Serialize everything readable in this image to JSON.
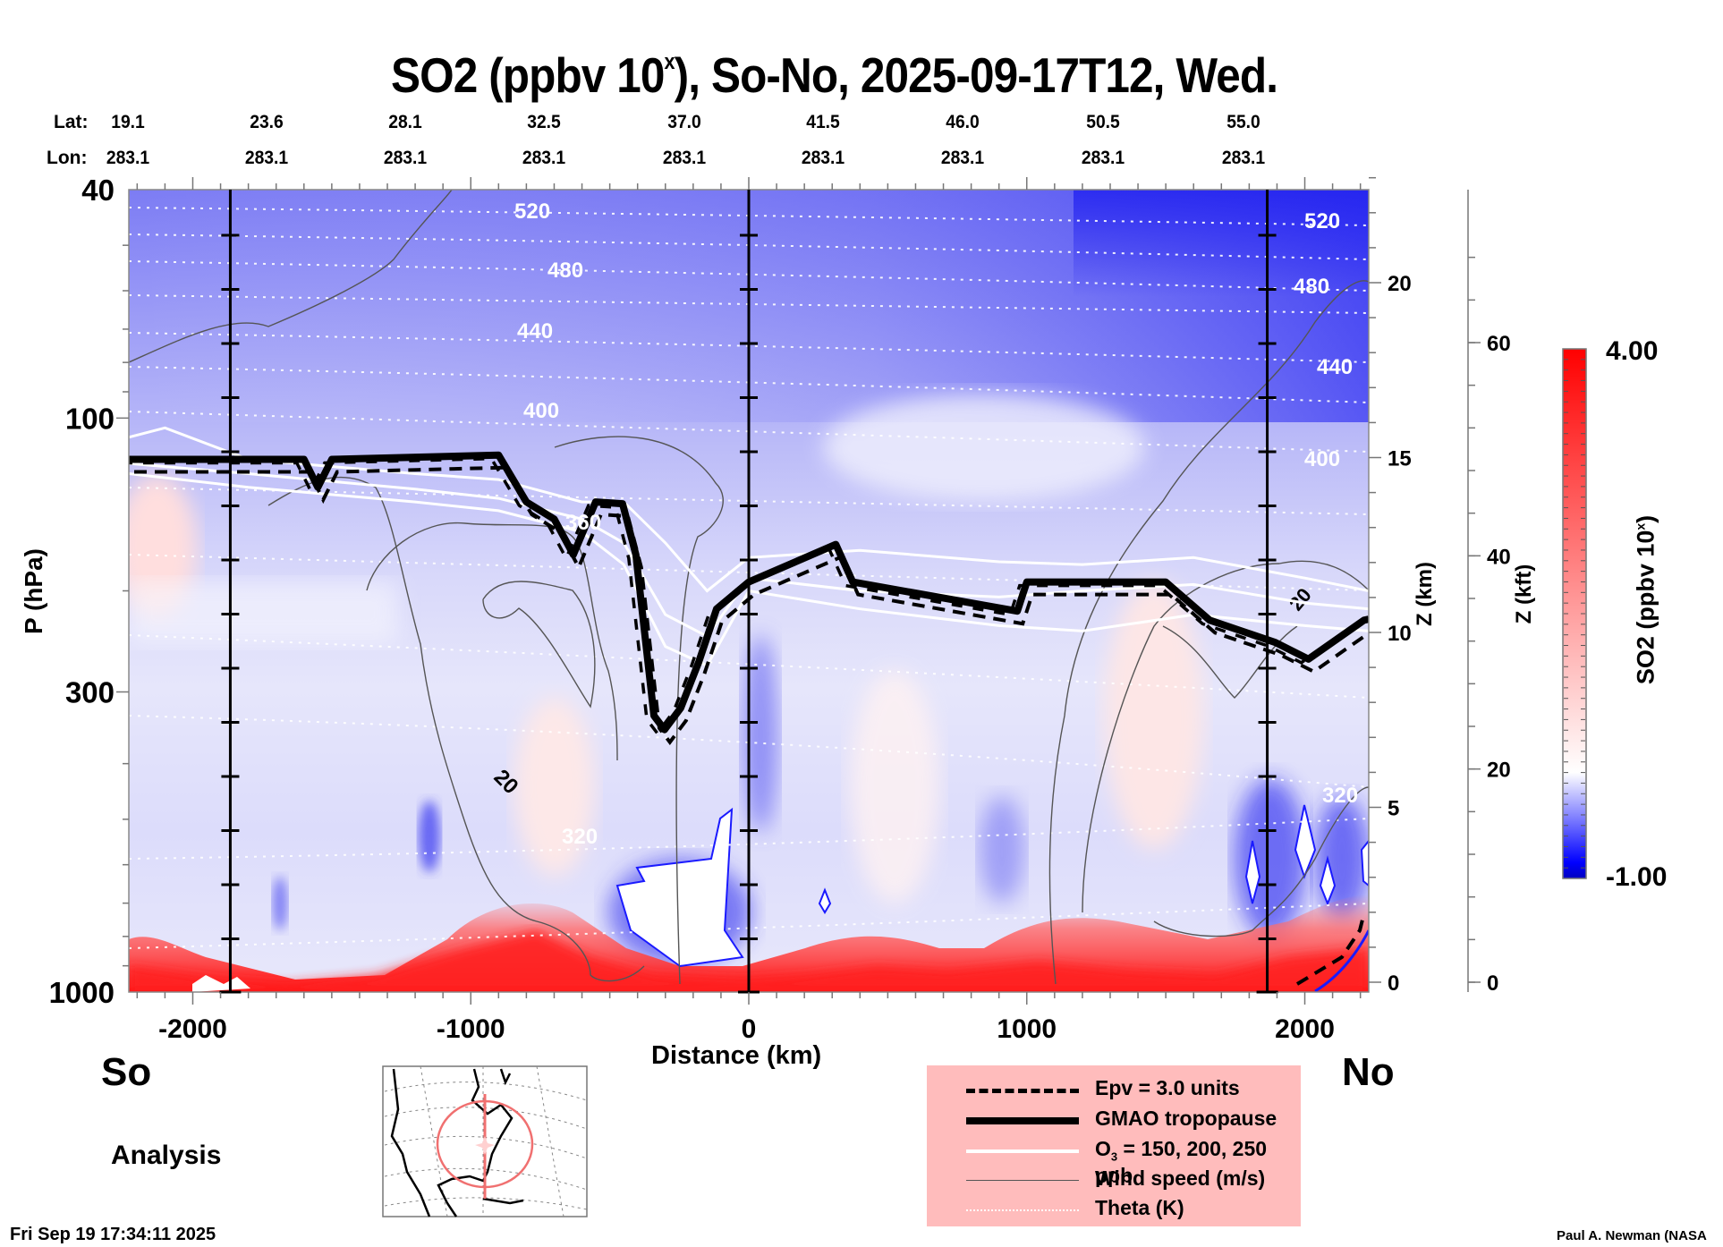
{
  "title": {
    "prefix": "SO2 (ppbv 10",
    "superscript": "x",
    "suffix": "), So-No, 2025-09-17T12, Wed."
  },
  "header": {
    "lat_label": "Lat:",
    "lon_label": "Lon:",
    "lat": [
      "19.1",
      "23.6",
      "28.1",
      "32.5",
      "37.0",
      "41.5",
      "46.0",
      "50.5",
      "55.0"
    ],
    "lon": [
      "283.1",
      "283.1",
      "283.1",
      "283.1",
      "283.1",
      "283.1",
      "283.1",
      "283.1",
      "283.1"
    ]
  },
  "labels": {
    "south": "So",
    "north": "No",
    "analysis": "Analysis",
    "timestamp": "Fri Sep 19 17:34:11 2025",
    "credit": "Paul A. Newman (NASA"
  },
  "legend": {
    "items": [
      {
        "label": "Epv = 3.0 units",
        "style": "dashed-black"
      },
      {
        "label": "GMAO tropopause",
        "style": "thick-black"
      },
      {
        "label_prefix": "O",
        "label_sub": "3",
        "label_suffix": " = 150, 200, 250 ppb",
        "style": "white"
      },
      {
        "label": "Wind speed (m/s)",
        "style": "thin-gray"
      },
      {
        "label": "Theta (K)",
        "style": "dotted-white"
      }
    ],
    "background": "#ffbcbc"
  },
  "colorbar": {
    "max_label": "4.00",
    "min_label": "-1.00",
    "title_prefix": "SO2 (ppbv 10",
    "title_sup": "x",
    "title_suffix": ")",
    "colors": [
      "#ff0000",
      "#ffffff",
      "#0000ff"
    ],
    "min": -1.0,
    "max": 4.0
  },
  "chart_data": {
    "type": "heatmap",
    "title": "SO2 (ppbv 10^x), So-No, 2025-09-17T12, Wed.",
    "xlabel": "Distance (km)",
    "ylabel": "P (hPa)",
    "y2label": "Z (km)",
    "y3label": "Z (kft)",
    "colorbar_label": "SO2 (ppbv 10^x)",
    "xlim": [
      -2230,
      2230
    ],
    "ylim": [
      1000,
      40
    ],
    "yscale": "log",
    "x_ticks": [
      -2000,
      -1000,
      0,
      1000,
      2000
    ],
    "x_tick_labels": [
      "-2000",
      "-1000",
      "0",
      "1000",
      "2000"
    ],
    "y_ticks": [
      40,
      100,
      300,
      1000
    ],
    "y_tick_labels": [
      "40",
      "100",
      "300",
      "1000"
    ],
    "z_km_ticks": [
      0,
      5,
      10,
      15,
      20
    ],
    "z_km_tick_labels": [
      "0",
      "5",
      "10",
      "15",
      "20"
    ],
    "z_kft_ticks": [
      0,
      20,
      40,
      60
    ],
    "z_kft_tick_labels": [
      "0",
      "20",
      "40",
      "60"
    ],
    "colorbar_range": [
      -1.0,
      4.0
    ],
    "reference_lines_km": [
      -1865,
      0,
      1865
    ],
    "theta_levels_K": [
      320,
      360,
      400,
      440,
      480,
      520
    ],
    "theta_label_texts": [
      "520",
      "480",
      "440",
      "400",
      "360",
      "320"
    ],
    "wind_speed_label": "20",
    "tropopause": {
      "distance_km": [
        -2230,
        -1600,
        -1550,
        -1500,
        -900,
        -800,
        -700,
        -631,
        -551,
        -454,
        -406,
        -341,
        -303,
        -245,
        -180,
        -116,
        0,
        313,
        374,
        966,
        1000,
        1500,
        1658,
        1894,
        2013,
        2213,
        2230
      ],
      "pressure_hPa": [
        118,
        118,
        132,
        118,
        116,
        140,
        150,
        173,
        140,
        141,
        173,
        330,
        349,
        320,
        266,
        215,
        193,
        166,
        193,
        217,
        193,
        193,
        225,
        246,
        263,
        225,
        224
      ]
    },
    "ozone_150ppb": {
      "distance_km": [
        -2230,
        -2100,
        -1800,
        -1200,
        -900,
        -600,
        -450,
        -300,
        -150,
        0,
        400,
        900,
        1200,
        1600,
        2000,
        2230
      ],
      "pressure_hPa": [
        108,
        104,
        118,
        125,
        128,
        140,
        140,
        165,
        200,
        175,
        170,
        178,
        180,
        175,
        190,
        200
      ]
    },
    "ozone_200ppb": {
      "distance_km": [
        -2230,
        -1800,
        -1200,
        -900,
        -600,
        -450,
        -300,
        -150,
        0,
        400,
        900,
        1200,
        1600,
        2000,
        2230
      ],
      "pressure_hPa": [
        120,
        125,
        133,
        138,
        150,
        165,
        220,
        240,
        190,
        200,
        205,
        200,
        195,
        210,
        215
      ]
    },
    "ozone_250ppb": {
      "distance_km": [
        -2230,
        -1800,
        -1200,
        -900,
        -600,
        -450,
        -300,
        -150,
        0,
        400,
        900,
        1200,
        1600,
        2000,
        2230
      ],
      "pressure_hPa": [
        125,
        132,
        140,
        145,
        158,
        180,
        250,
        270,
        200,
        215,
        230,
        235,
        220,
        230,
        235
      ]
    },
    "field_summary": "Negative (blue) SO2 anomaly aloft increasing toward 40 hPa; near-neutral/white mid-troposphere; positive (red) values below ~800 hPa, strongest 900-1000 hPa near -1000 to -300 km and 500 to 2200 km; saturated (< -1) white-filled patches near 700-900 hPa around -500 km and 1800-2200 km."
  }
}
